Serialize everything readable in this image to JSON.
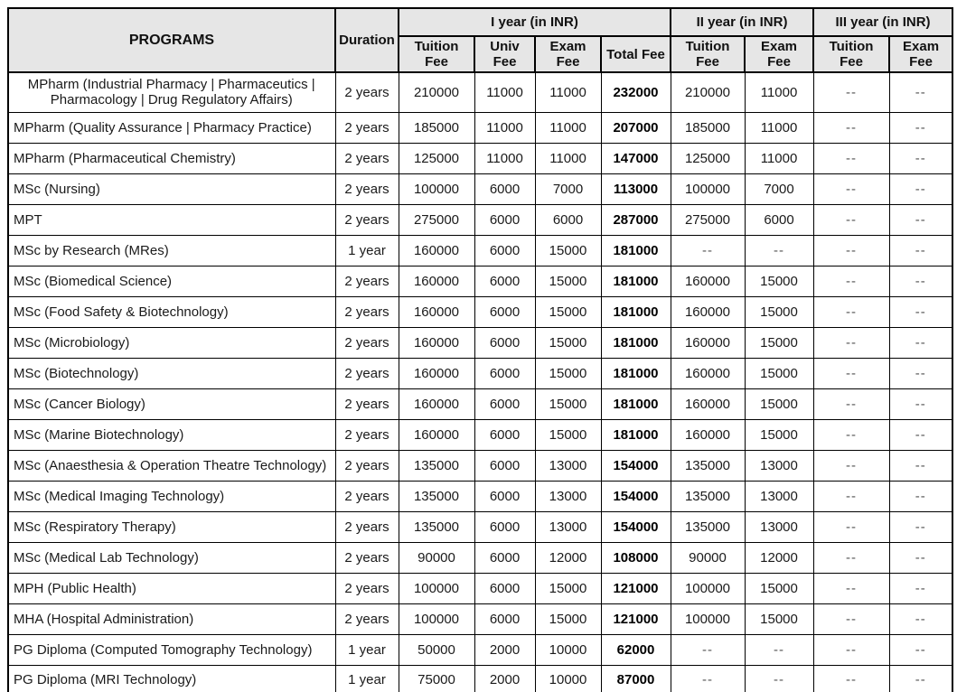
{
  "colors": {
    "header_bg": "#e6e6e6",
    "border": "#000000",
    "dash_text": "#555555"
  },
  "table": {
    "header": {
      "programs": "PROGRAMS",
      "duration": "Duration",
      "year1_group": "I year (in INR)",
      "year2_group": "II year (in INR)",
      "year3_group": "III year (in INR)",
      "sub": [
        "Tuition Fee",
        "Univ Fee",
        "Exam Fee",
        "Total Fee",
        "Tuition Fee",
        "Exam Fee",
        "Tuition Fee",
        "Exam Fee"
      ]
    },
    "rows": [
      {
        "program": "MPharm (Industrial Pharmacy | Pharmaceutics | Pharmacology | Drug Regulatory Affairs)",
        "duration": "2 years",
        "y1_tuition": "210000",
        "y1_univ": "11000",
        "y1_exam": "11000",
        "y1_total": "232000",
        "y2_tuition": "210000",
        "y2_exam": "11000",
        "y3_tuition": "--",
        "y3_exam": "--"
      },
      {
        "program": "MPharm (Quality Assurance | Pharmacy Practice)",
        "duration": "2 years",
        "y1_tuition": "185000",
        "y1_univ": "11000",
        "y1_exam": "11000",
        "y1_total": "207000",
        "y2_tuition": "185000",
        "y2_exam": "11000",
        "y3_tuition": "--",
        "y3_exam": "--"
      },
      {
        "program": "MPharm (Pharmaceutical Chemistry)",
        "duration": "2 years",
        "y1_tuition": "125000",
        "y1_univ": "11000",
        "y1_exam": "11000",
        "y1_total": "147000",
        "y2_tuition": "125000",
        "y2_exam": "11000",
        "y3_tuition": "--",
        "y3_exam": "--"
      },
      {
        "program": "MSc (Nursing)",
        "duration": "2 years",
        "y1_tuition": "100000",
        "y1_univ": "6000",
        "y1_exam": "7000",
        "y1_total": "113000",
        "y2_tuition": "100000",
        "y2_exam": "7000",
        "y3_tuition": "--",
        "y3_exam": "--"
      },
      {
        "program": "MPT",
        "duration": "2 years",
        "y1_tuition": "275000",
        "y1_univ": "6000",
        "y1_exam": "6000",
        "y1_total": "287000",
        "y2_tuition": "275000",
        "y2_exam": "6000",
        "y3_tuition": "--",
        "y3_exam": "--"
      },
      {
        "program": "MSc by Research (MRes)",
        "duration": "1 year",
        "y1_tuition": "160000",
        "y1_univ": "6000",
        "y1_exam": "15000",
        "y1_total": "181000",
        "y2_tuition": "--",
        "y2_exam": "--",
        "y3_tuition": "--",
        "y3_exam": "--"
      },
      {
        "program": "MSc (Biomedical Science)",
        "duration": "2 years",
        "y1_tuition": "160000",
        "y1_univ": "6000",
        "y1_exam": "15000",
        "y1_total": "181000",
        "y2_tuition": "160000",
        "y2_exam": "15000",
        "y3_tuition": "--",
        "y3_exam": "--"
      },
      {
        "program": "MSc (Food Safety & Biotechnology)",
        "duration": "2 years",
        "y1_tuition": "160000",
        "y1_univ": "6000",
        "y1_exam": "15000",
        "y1_total": "181000",
        "y2_tuition": "160000",
        "y2_exam": "15000",
        "y3_tuition": "--",
        "y3_exam": "--"
      },
      {
        "program": "MSc (Microbiology)",
        "duration": "2 years",
        "y1_tuition": "160000",
        "y1_univ": "6000",
        "y1_exam": "15000",
        "y1_total": "181000",
        "y2_tuition": "160000",
        "y2_exam": "15000",
        "y3_tuition": "--",
        "y3_exam": "--"
      },
      {
        "program": "MSc (Biotechnology)",
        "duration": "2 years",
        "y1_tuition": "160000",
        "y1_univ": "6000",
        "y1_exam": "15000",
        "y1_total": "181000",
        "y2_tuition": "160000",
        "y2_exam": "15000",
        "y3_tuition": "--",
        "y3_exam": "--"
      },
      {
        "program": "MSc (Cancer Biology)",
        "duration": "2 years",
        "y1_tuition": "160000",
        "y1_univ": "6000",
        "y1_exam": "15000",
        "y1_total": "181000",
        "y2_tuition": "160000",
        "y2_exam": "15000",
        "y3_tuition": "--",
        "y3_exam": "--"
      },
      {
        "program": "MSc (Marine Biotechnology)",
        "duration": "2 years",
        "y1_tuition": "160000",
        "y1_univ": "6000",
        "y1_exam": "15000",
        "y1_total": "181000",
        "y2_tuition": "160000",
        "y2_exam": "15000",
        "y3_tuition": "--",
        "y3_exam": "--"
      },
      {
        "program": "MSc (Anaesthesia & Operation Theatre Technology)",
        "duration": "2 years",
        "y1_tuition": "135000",
        "y1_univ": "6000",
        "y1_exam": "13000",
        "y1_total": "154000",
        "y2_tuition": "135000",
        "y2_exam": "13000",
        "y3_tuition": "--",
        "y3_exam": "--"
      },
      {
        "program": "MSc (Medical Imaging Technology)",
        "duration": "2 years",
        "y1_tuition": "135000",
        "y1_univ": "6000",
        "y1_exam": "13000",
        "y1_total": "154000",
        "y2_tuition": "135000",
        "y2_exam": "13000",
        "y3_tuition": "--",
        "y3_exam": "--"
      },
      {
        "program": "MSc (Respiratory Therapy)",
        "duration": "2 years",
        "y1_tuition": "135000",
        "y1_univ": "6000",
        "y1_exam": "13000",
        "y1_total": "154000",
        "y2_tuition": "135000",
        "y2_exam": "13000",
        "y3_tuition": "--",
        "y3_exam": "--"
      },
      {
        "program": "MSc (Medical Lab Technology)",
        "duration": "2 years",
        "y1_tuition": "90000",
        "y1_univ": "6000",
        "y1_exam": "12000",
        "y1_total": "108000",
        "y2_tuition": "90000",
        "y2_exam": "12000",
        "y3_tuition": "--",
        "y3_exam": "--"
      },
      {
        "program": "MPH (Public Health)",
        "duration": "2 years",
        "y1_tuition": "100000",
        "y1_univ": "6000",
        "y1_exam": "15000",
        "y1_total": "121000",
        "y2_tuition": "100000",
        "y2_exam": "15000",
        "y3_tuition": "--",
        "y3_exam": "--"
      },
      {
        "program": "MHA (Hospital Administration)",
        "duration": "2 years",
        "y1_tuition": "100000",
        "y1_univ": "6000",
        "y1_exam": "15000",
        "y1_total": "121000",
        "y2_tuition": "100000",
        "y2_exam": "15000",
        "y3_tuition": "--",
        "y3_exam": "--"
      },
      {
        "program": "PG Diploma (Computed Tomography Technology)",
        "duration": "1 year",
        "y1_tuition": "50000",
        "y1_univ": "2000",
        "y1_exam": "10000",
        "y1_total": "62000",
        "y2_tuition": "--",
        "y2_exam": "--",
        "y3_tuition": "--",
        "y3_exam": "--"
      },
      {
        "program": "PG Diploma (MRI Technology)",
        "duration": "1 year",
        "y1_tuition": "75000",
        "y1_univ": "2000",
        "y1_exam": "10000",
        "y1_total": "87000",
        "y2_tuition": "--",
        "y2_exam": "--",
        "y3_tuition": "--",
        "y3_exam": "--"
      }
    ]
  }
}
